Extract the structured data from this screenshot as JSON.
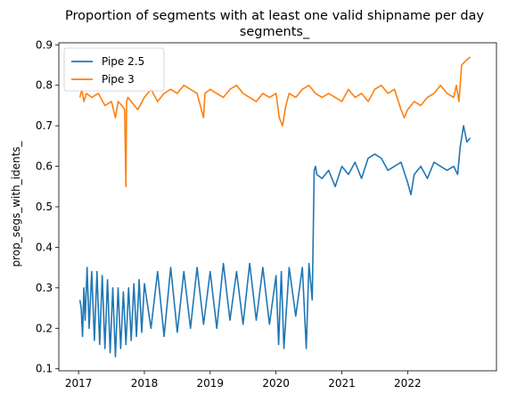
{
  "chart_data": {
    "type": "line",
    "title": "Proportion of segments with at least one valid shipname per day",
    "subtitle": "segments_",
    "xlabel": "",
    "ylabel": "prop_segs_with_idents_",
    "x_unit": "year",
    "xlim": [
      2016.7,
      2023.35
    ],
    "ylim": [
      0.095,
      0.905
    ],
    "x_ticks": [
      2017,
      2018,
      2019,
      2020,
      2021,
      2022
    ],
    "x_tick_labels": [
      "2017",
      "2018",
      "2019",
      "2020",
      "2021",
      "2022"
    ],
    "y_ticks": [
      0.1,
      0.2,
      0.3,
      0.4,
      0.5,
      0.6,
      0.7,
      0.8,
      0.9
    ],
    "y_tick_labels": [
      "0.1",
      "0.2",
      "0.3",
      "0.4",
      "0.5",
      "0.6",
      "0.7",
      "0.8",
      "0.9"
    ],
    "grid": false,
    "legend_position": "top-left",
    "series": [
      {
        "name": "Pipe 2.5",
        "color": "#1f77b4",
        "x": [
          2017.02,
          2017.04,
          2017.06,
          2017.08,
          2017.1,
          2017.13,
          2017.16,
          2017.2,
          2017.24,
          2017.28,
          2017.32,
          2017.36,
          2017.4,
          2017.44,
          2017.48,
          2017.52,
          2017.56,
          2017.6,
          2017.64,
          2017.68,
          2017.72,
          2017.76,
          2017.8,
          2017.84,
          2017.88,
          2017.92,
          2017.96,
          2018.0,
          2018.1,
          2018.2,
          2018.3,
          2018.4,
          2018.5,
          2018.6,
          2018.7,
          2018.8,
          2018.9,
          2019.0,
          2019.1,
          2019.2,
          2019.3,
          2019.4,
          2019.5,
          2019.6,
          2019.7,
          2019.8,
          2019.9,
          2020.0,
          2020.04,
          2020.08,
          2020.12,
          2020.2,
          2020.3,
          2020.4,
          2020.46,
          2020.5,
          2020.55,
          2020.58,
          2020.6,
          2020.62,
          2020.7,
          2020.8,
          2020.9,
          2021.0,
          2021.1,
          2021.2,
          2021.3,
          2021.4,
          2021.5,
          2021.6,
          2021.7,
          2021.8,
          2021.9,
          2022.0,
          2022.05,
          2022.1,
          2022.2,
          2022.3,
          2022.4,
          2022.5,
          2022.6,
          2022.7,
          2022.76,
          2022.8,
          2022.85,
          2022.9,
          2022.95
        ],
        "values": [
          0.27,
          0.25,
          0.18,
          0.3,
          0.22,
          0.35,
          0.2,
          0.34,
          0.17,
          0.34,
          0.16,
          0.33,
          0.15,
          0.32,
          0.14,
          0.3,
          0.13,
          0.3,
          0.15,
          0.29,
          0.16,
          0.3,
          0.17,
          0.31,
          0.18,
          0.32,
          0.19,
          0.31,
          0.2,
          0.34,
          0.18,
          0.35,
          0.19,
          0.34,
          0.2,
          0.35,
          0.21,
          0.34,
          0.2,
          0.36,
          0.22,
          0.34,
          0.21,
          0.36,
          0.22,
          0.35,
          0.21,
          0.33,
          0.16,
          0.34,
          0.15,
          0.35,
          0.23,
          0.35,
          0.15,
          0.36,
          0.27,
          0.59,
          0.6,
          0.58,
          0.57,
          0.59,
          0.55,
          0.6,
          0.58,
          0.61,
          0.57,
          0.62,
          0.63,
          0.62,
          0.59,
          0.6,
          0.61,
          0.56,
          0.53,
          0.58,
          0.6,
          0.57,
          0.61,
          0.6,
          0.59,
          0.6,
          0.58,
          0.65,
          0.7,
          0.66,
          0.67
        ]
      },
      {
        "name": "Pipe 3",
        "color": "#ff7f0e",
        "x": [
          2017.02,
          2017.05,
          2017.08,
          2017.12,
          2017.2,
          2017.3,
          2017.4,
          2017.5,
          2017.56,
          2017.6,
          2017.66,
          2017.7,
          2017.72,
          2017.73,
          2017.75,
          2017.8,
          2017.9,
          2018.0,
          2018.1,
          2018.2,
          2018.3,
          2018.4,
          2018.5,
          2018.6,
          2018.7,
          2018.8,
          2018.9,
          2018.92,
          2019.0,
          2019.1,
          2019.2,
          2019.3,
          2019.4,
          2019.5,
          2019.6,
          2019.7,
          2019.8,
          2019.9,
          2020.0,
          2020.05,
          2020.1,
          2020.15,
          2020.2,
          2020.3,
          2020.4,
          2020.5,
          2020.6,
          2020.7,
          2020.8,
          2020.9,
          2021.0,
          2021.1,
          2021.2,
          2021.3,
          2021.4,
          2021.5,
          2021.6,
          2021.7,
          2021.8,
          2021.9,
          2021.95,
          2022.0,
          2022.1,
          2022.2,
          2022.3,
          2022.4,
          2022.5,
          2022.6,
          2022.7,
          2022.74,
          2022.78,
          2022.82,
          2022.88,
          2022.95
        ],
        "values": [
          0.77,
          0.79,
          0.76,
          0.78,
          0.77,
          0.78,
          0.75,
          0.76,
          0.72,
          0.76,
          0.75,
          0.74,
          0.55,
          0.76,
          0.77,
          0.76,
          0.74,
          0.77,
          0.79,
          0.76,
          0.78,
          0.79,
          0.78,
          0.8,
          0.79,
          0.78,
          0.72,
          0.78,
          0.79,
          0.78,
          0.77,
          0.79,
          0.8,
          0.78,
          0.77,
          0.76,
          0.78,
          0.77,
          0.78,
          0.72,
          0.7,
          0.75,
          0.78,
          0.77,
          0.79,
          0.8,
          0.78,
          0.77,
          0.78,
          0.77,
          0.76,
          0.79,
          0.77,
          0.78,
          0.76,
          0.79,
          0.8,
          0.78,
          0.79,
          0.74,
          0.72,
          0.74,
          0.76,
          0.75,
          0.77,
          0.78,
          0.8,
          0.78,
          0.77,
          0.8,
          0.76,
          0.85,
          0.86,
          0.87
        ]
      }
    ]
  }
}
